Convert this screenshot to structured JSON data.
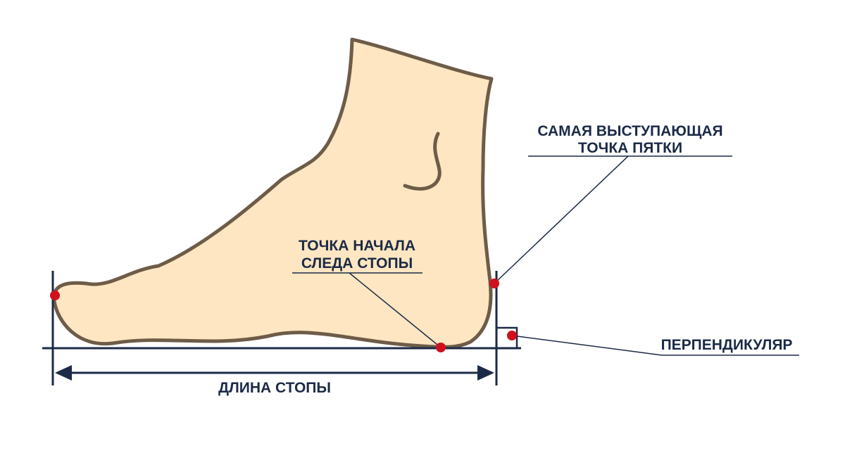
{
  "labels": {
    "heel_line1": "САМАЯ ВЫСТУПАЮЩАЯ",
    "heel_line2": "ТОЧКА ПЯТКИ",
    "start_line1": "ТОЧКА НАЧАЛА",
    "start_line2": "СЛЕДА СТОПЫ",
    "perpendicular": "ПЕРПЕНДИКУЛЯР",
    "foot_length": "ДЛИНА СТОПЫ"
  },
  "colors": {
    "foot_fill": "#fde6c1",
    "foot_stroke": "#6e5c48",
    "line": "#1b2a47",
    "point": "#d0101c"
  }
}
